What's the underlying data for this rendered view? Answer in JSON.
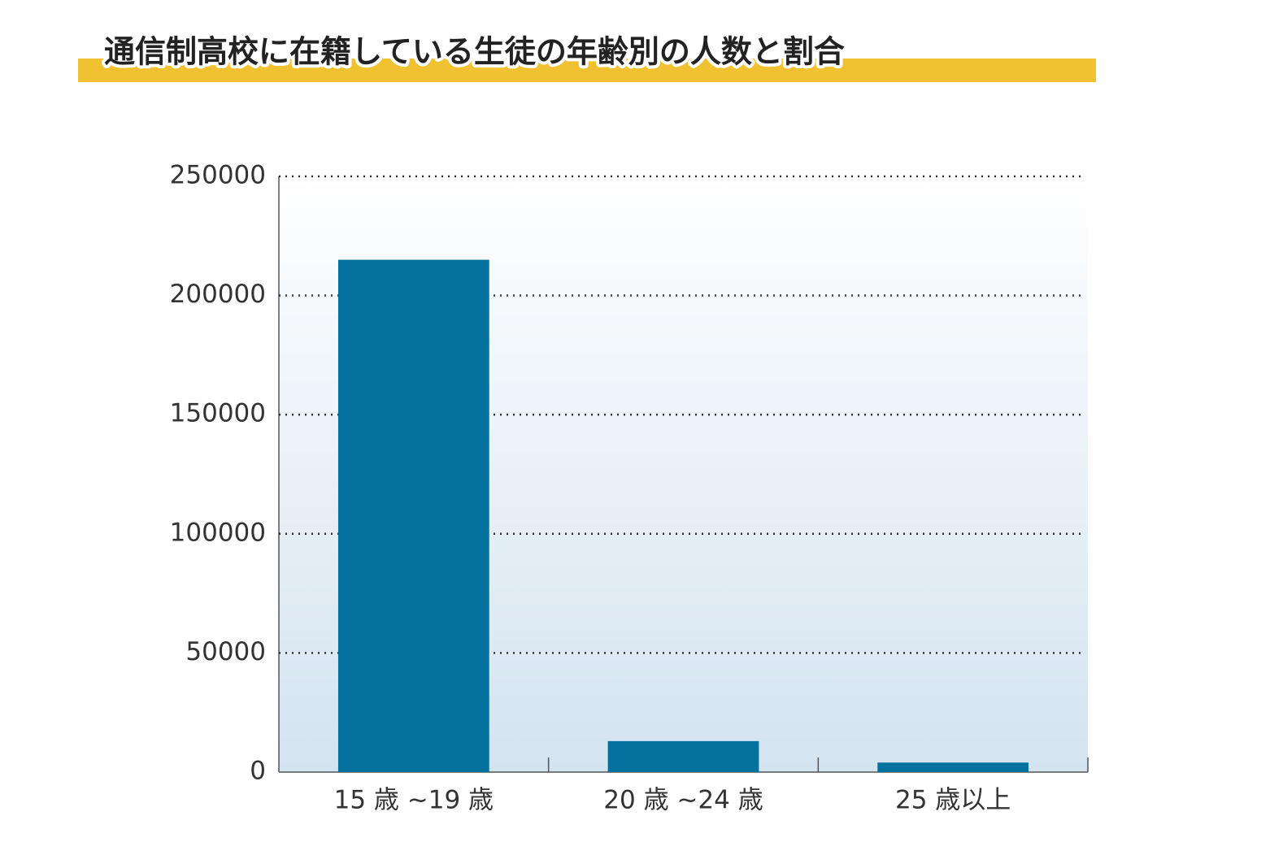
{
  "chart_data": {
    "type": "bar",
    "title": "通信制高校に在籍している生徒の年齢別の人数と割合",
    "categories": [
      "15 歳 ~19 歳",
      "20 歳 ~24 歳",
      "25 歳以上"
    ],
    "values": [
      215000,
      13000,
      4000
    ],
    "color": "#04719e",
    "ylim": [
      0,
      250000
    ],
    "yticks": [
      0,
      50000,
      100000,
      150000,
      200000,
      250000
    ],
    "grid": true
  }
}
